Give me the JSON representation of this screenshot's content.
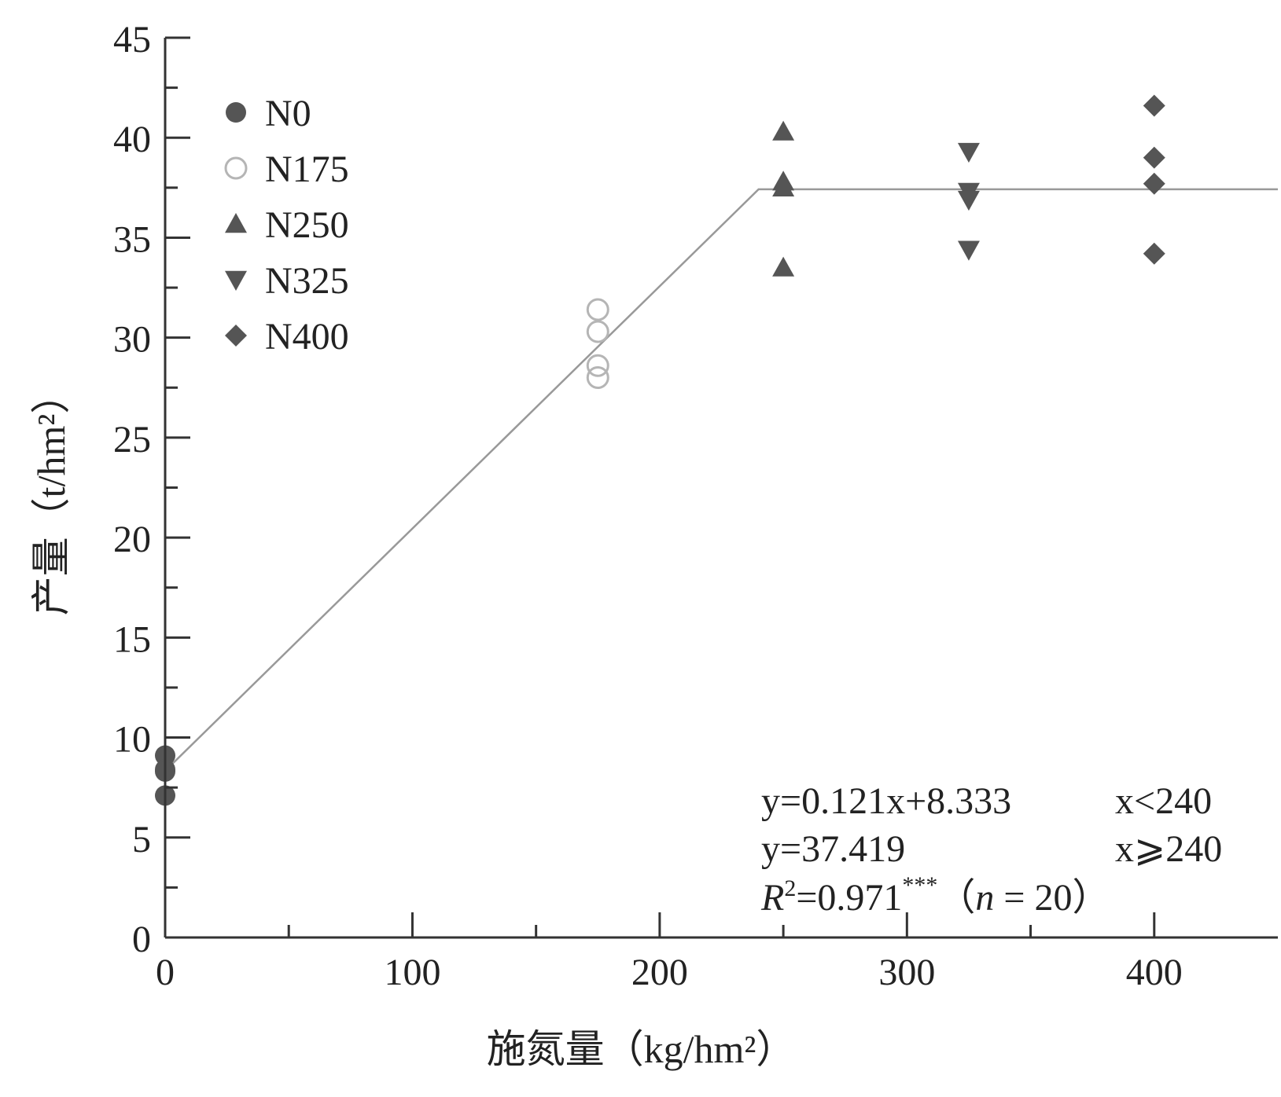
{
  "chart_data": {
    "type": "scatter",
    "xlabel": "施氮量（kg/hm²）",
    "ylabel": "产量（t/hm²）",
    "xlim": [
      0,
      450
    ],
    "ylim": [
      0,
      45
    ],
    "x_ticks": [
      "0",
      "100",
      "200",
      "300",
      "400"
    ],
    "y_ticks": [
      "0",
      "5",
      "10",
      "15",
      "20",
      "25",
      "30",
      "35",
      "40",
      "45"
    ],
    "grid": false,
    "legend_position": "top-left",
    "series": [
      {
        "name": "N0",
        "marker": "circle-filled",
        "color": "#555555",
        "points": [
          [
            0,
            9.1
          ],
          [
            0,
            8.4
          ],
          [
            0,
            8.3
          ],
          [
            0,
            7.1
          ]
        ]
      },
      {
        "name": "N175",
        "marker": "circle-open",
        "color": "#b5b5b5",
        "points": [
          [
            175,
            31.4
          ],
          [
            175,
            30.3
          ],
          [
            175,
            28.6
          ],
          [
            175,
            28.0
          ]
        ]
      },
      {
        "name": "N250",
        "marker": "triangle-up",
        "color": "#555555",
        "points": [
          [
            250,
            40.3
          ],
          [
            250,
            37.8
          ],
          [
            250,
            37.5
          ],
          [
            250,
            33.5
          ]
        ]
      },
      {
        "name": "N325",
        "marker": "triangle-down",
        "color": "#555555",
        "points": [
          [
            325,
            39.3
          ],
          [
            325,
            37.3
          ],
          [
            325,
            36.9
          ],
          [
            325,
            34.4
          ]
        ]
      },
      {
        "name": "N400",
        "marker": "diamond",
        "color": "#555555",
        "points": [
          [
            400,
            41.6
          ],
          [
            400,
            39.0
          ],
          [
            400,
            37.7
          ],
          [
            400,
            34.2
          ]
        ]
      }
    ],
    "fit_line": {
      "color": "#999999",
      "points": [
        [
          0,
          8.333
        ],
        [
          240,
          37.419
        ],
        [
          450,
          37.419
        ]
      ]
    },
    "annotations": {
      "eq1": "y=0.121x+8.333",
      "cond1": "x<240",
      "eq2": "y=37.419",
      "cond2": "x⩾240",
      "r2_label": "R",
      "r2_sup": "2",
      "r2_value": "=0.971",
      "r2_stars": "***",
      "n_open": "（",
      "n_italic": "n",
      "n_rest": " = 20",
      "n_close": "）"
    }
  }
}
